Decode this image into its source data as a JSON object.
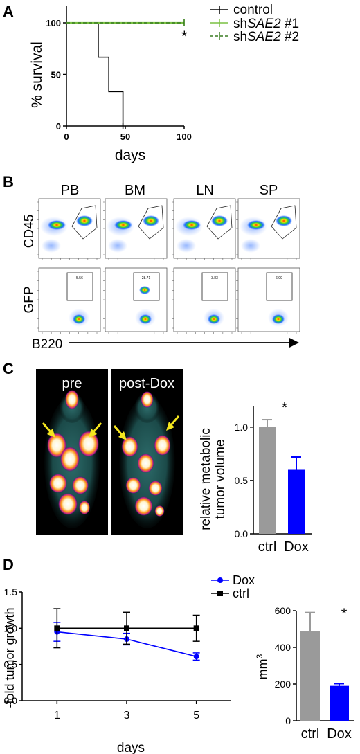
{
  "panels": {
    "a": {
      "letter": "A"
    },
    "b": {
      "letter": "B",
      "columns": [
        "PB",
        "BM",
        "LN",
        "SP"
      ],
      "row1_label": "CD45",
      "row2_label": "GFP",
      "x_label": "B220",
      "gate_values": [
        "5.56",
        "28.71",
        "3.83",
        "6.09"
      ]
    },
    "c": {
      "letter": "C",
      "image_labels": [
        "pre",
        "post-Dox"
      ]
    },
    "d": {
      "letter": "D"
    }
  },
  "colors": {
    "control": "#000000",
    "sh1": "#7ac142",
    "sh2": "#3a7d22",
    "gray_bar": "#9a9a9a",
    "blue": "#0000ff",
    "arrow": "#f5e61e"
  },
  "chart_data": [
    {
      "id": "survival",
      "type": "line",
      "step": true,
      "ylabel": "% survival",
      "xlabel": "days",
      "xlim": [
        0,
        100
      ],
      "ylim": [
        0,
        100
      ],
      "xticks": [
        0,
        50,
        100
      ],
      "yticks": [
        0,
        50,
        100
      ],
      "series": [
        {
          "name": "control",
          "x": [
            0,
            27,
            27,
            36,
            36,
            48,
            48
          ],
          "y": [
            100,
            100,
            66.7,
            66.7,
            33.3,
            33.3,
            0
          ]
        },
        {
          "name": "shSAE2 #1",
          "name_prefix": "sh",
          "name_gene": "SAE2",
          "name_suffix": " #1",
          "x": [
            0,
            100
          ],
          "y": [
            100,
            100
          ]
        },
        {
          "name": "shSAE2 #2",
          "name_prefix": "sh",
          "name_gene": "SAE2",
          "name_suffix": " #2",
          "x": [
            0,
            100
          ],
          "y": [
            100,
            100
          ]
        }
      ],
      "annotation": "*",
      "legend_position": "right"
    },
    {
      "id": "metabolic",
      "type": "bar",
      "ylabel_lines": [
        "relative metabolic",
        "tumor volume"
      ],
      "categories": [
        "ctrl",
        "Dox"
      ],
      "values": [
        1.0,
        0.6
      ],
      "errors": [
        0.07,
        0.12
      ],
      "ylim": [
        0,
        1.2
      ],
      "yticks": [
        "0.0",
        "0.5",
        "1.0"
      ],
      "annotation": "*"
    },
    {
      "id": "growth",
      "type": "line",
      "ylabel": "-fold tumor growth",
      "xlabel": "days",
      "x": [
        1,
        3,
        5
      ],
      "xlim": [
        0,
        6
      ],
      "ylim": [
        0,
        1.5
      ],
      "yticks": [
        "0.0",
        "0.5",
        "1.0",
        "1.5"
      ],
      "series": [
        {
          "name": "Dox",
          "values": [
            0.95,
            0.85,
            0.61
          ],
          "errors": [
            0.13,
            0.08,
            0.05
          ],
          "marker": "circle"
        },
        {
          "name": "ctrl",
          "values": [
            1.0,
            1.0,
            1.0
          ],
          "errors": [
            0.27,
            0.22,
            0.18
          ],
          "marker": "square"
        }
      ],
      "legend_position": "top"
    },
    {
      "id": "mm3",
      "type": "bar",
      "ylabel": "mm",
      "ylabel_sup": "3",
      "categories": [
        "ctrl",
        "Dox"
      ],
      "values": [
        490,
        190
      ],
      "errors": [
        100,
        12
      ],
      "ylim": [
        0,
        600
      ],
      "yticks": [
        "0",
        "200",
        "400",
        "600"
      ],
      "annotation": "*"
    }
  ]
}
